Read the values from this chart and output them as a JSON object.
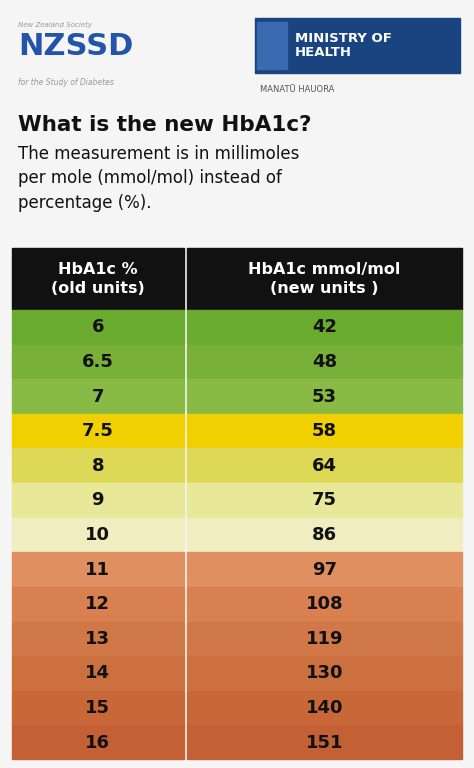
{
  "title": "What is the new HbA1c?",
  "subtitle": "The measurement is in millimoles\nper mole (mmol/mol) instead of\npercentage (%).",
  "col1_header": "HbA1c %\n(old units)",
  "col2_header": "HbA1c mmol/mol\n(new units )",
  "header_bg": "#111111",
  "header_fg": "#ffffff",
  "rows": [
    {
      "hba1c_pct": "6",
      "hba1c_mmol": "42",
      "color": "#6aaa2e"
    },
    {
      "hba1c_pct": "6.5",
      "hba1c_mmol": "48",
      "color": "#78b03a"
    },
    {
      "hba1c_pct": "7",
      "hba1c_mmol": "53",
      "color": "#88ba45"
    },
    {
      "hba1c_pct": "7.5",
      "hba1c_mmol": "58",
      "color": "#f0d000"
    },
    {
      "hba1c_pct": "8",
      "hba1c_mmol": "64",
      "color": "#ddd855"
    },
    {
      "hba1c_pct": "9",
      "hba1c_mmol": "75",
      "color": "#e8e898"
    },
    {
      "hba1c_pct": "10",
      "hba1c_mmol": "86",
      "color": "#f0eec0"
    },
    {
      "hba1c_pct": "11",
      "hba1c_mmol": "97",
      "color": "#e09060"
    },
    {
      "hba1c_pct": "12",
      "hba1c_mmol": "108",
      "color": "#d88050"
    },
    {
      "hba1c_pct": "13",
      "hba1c_mmol": "119",
      "color": "#d07848"
    },
    {
      "hba1c_pct": "14",
      "hba1c_mmol": "130",
      "color": "#cc7040"
    },
    {
      "hba1c_pct": "15",
      "hba1c_mmol": "140",
      "color": "#c86838"
    },
    {
      "hba1c_pct": "16",
      "hba1c_mmol": "151",
      "color": "#c46035"
    }
  ],
  "bg_color": "#f5f5f5",
  "row_text_color": "#111111",
  "nzssd_small": "New Zealand Society",
  "nzssd_big": "NZSSD",
  "nzssd_sub": "for the Study of Diabetes",
  "moh_text": "MINISTRY OF\nHEALTH",
  "moh_sub": "MANATŪ HAUORA",
  "moh_bg": "#1a4480"
}
